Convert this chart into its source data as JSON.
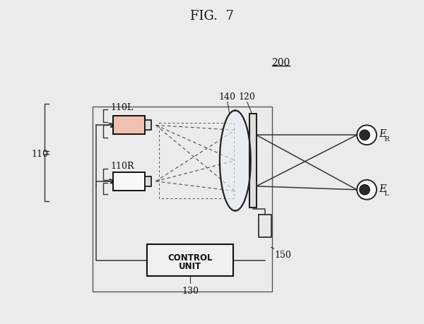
{
  "title": "FIG.  7",
  "bg_color": "#ebebeb",
  "label_200": "200",
  "label_140": "140",
  "label_120": "120",
  "label_110": "110",
  "label_110L": "110L",
  "label_110R": "110R",
  "label_130": "130",
  "label_150": "150",
  "label_ER": "E",
  "label_EL": "E",
  "sub_R": "R",
  "sub_L": "L",
  "control_line1": "CONTROL",
  "control_line2": "UNIT",
  "proj_L_color": "#f0c0b0",
  "proj_R_color": "#f8f8f8",
  "line_color": "#333333",
  "dash_color": "#555555"
}
